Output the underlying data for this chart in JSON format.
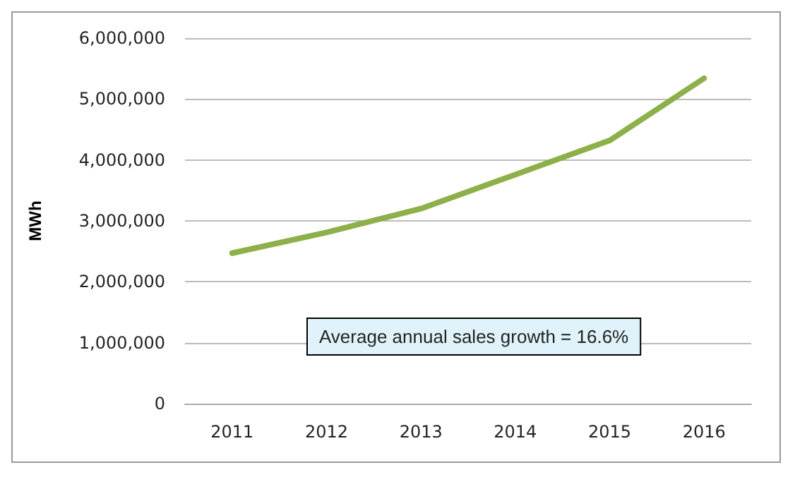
{
  "chart_data": {
    "type": "line",
    "ylabel": "MWh",
    "categories": [
      "2011",
      "2012",
      "2013",
      "2014",
      "2015",
      "2016"
    ],
    "series": [
      {
        "color": "#8db04a",
        "values": [
          2470000,
          2810000,
          3200000,
          3760000,
          4320000,
          5340000
        ]
      }
    ],
    "ylim": [
      0,
      6000000
    ],
    "yticks": [
      0,
      {
        "value": 1000000,
        "label": "1,000,000"
      },
      {
        "value": 2000000,
        "label": "2,000,000"
      },
      {
        "value": 3000000,
        "label": "3,000,000"
      },
      {
        "value": 4000000,
        "label": "4,000,000"
      },
      {
        "value": 5000000,
        "label": "5,000,000"
      },
      {
        "value": 6000000,
        "label": "6,000,000"
      }
    ],
    "grid": "y",
    "marker": "none",
    "line_style": "solid",
    "annotations": [
      "Average annual sales growth = 16.6%"
    ]
  }
}
